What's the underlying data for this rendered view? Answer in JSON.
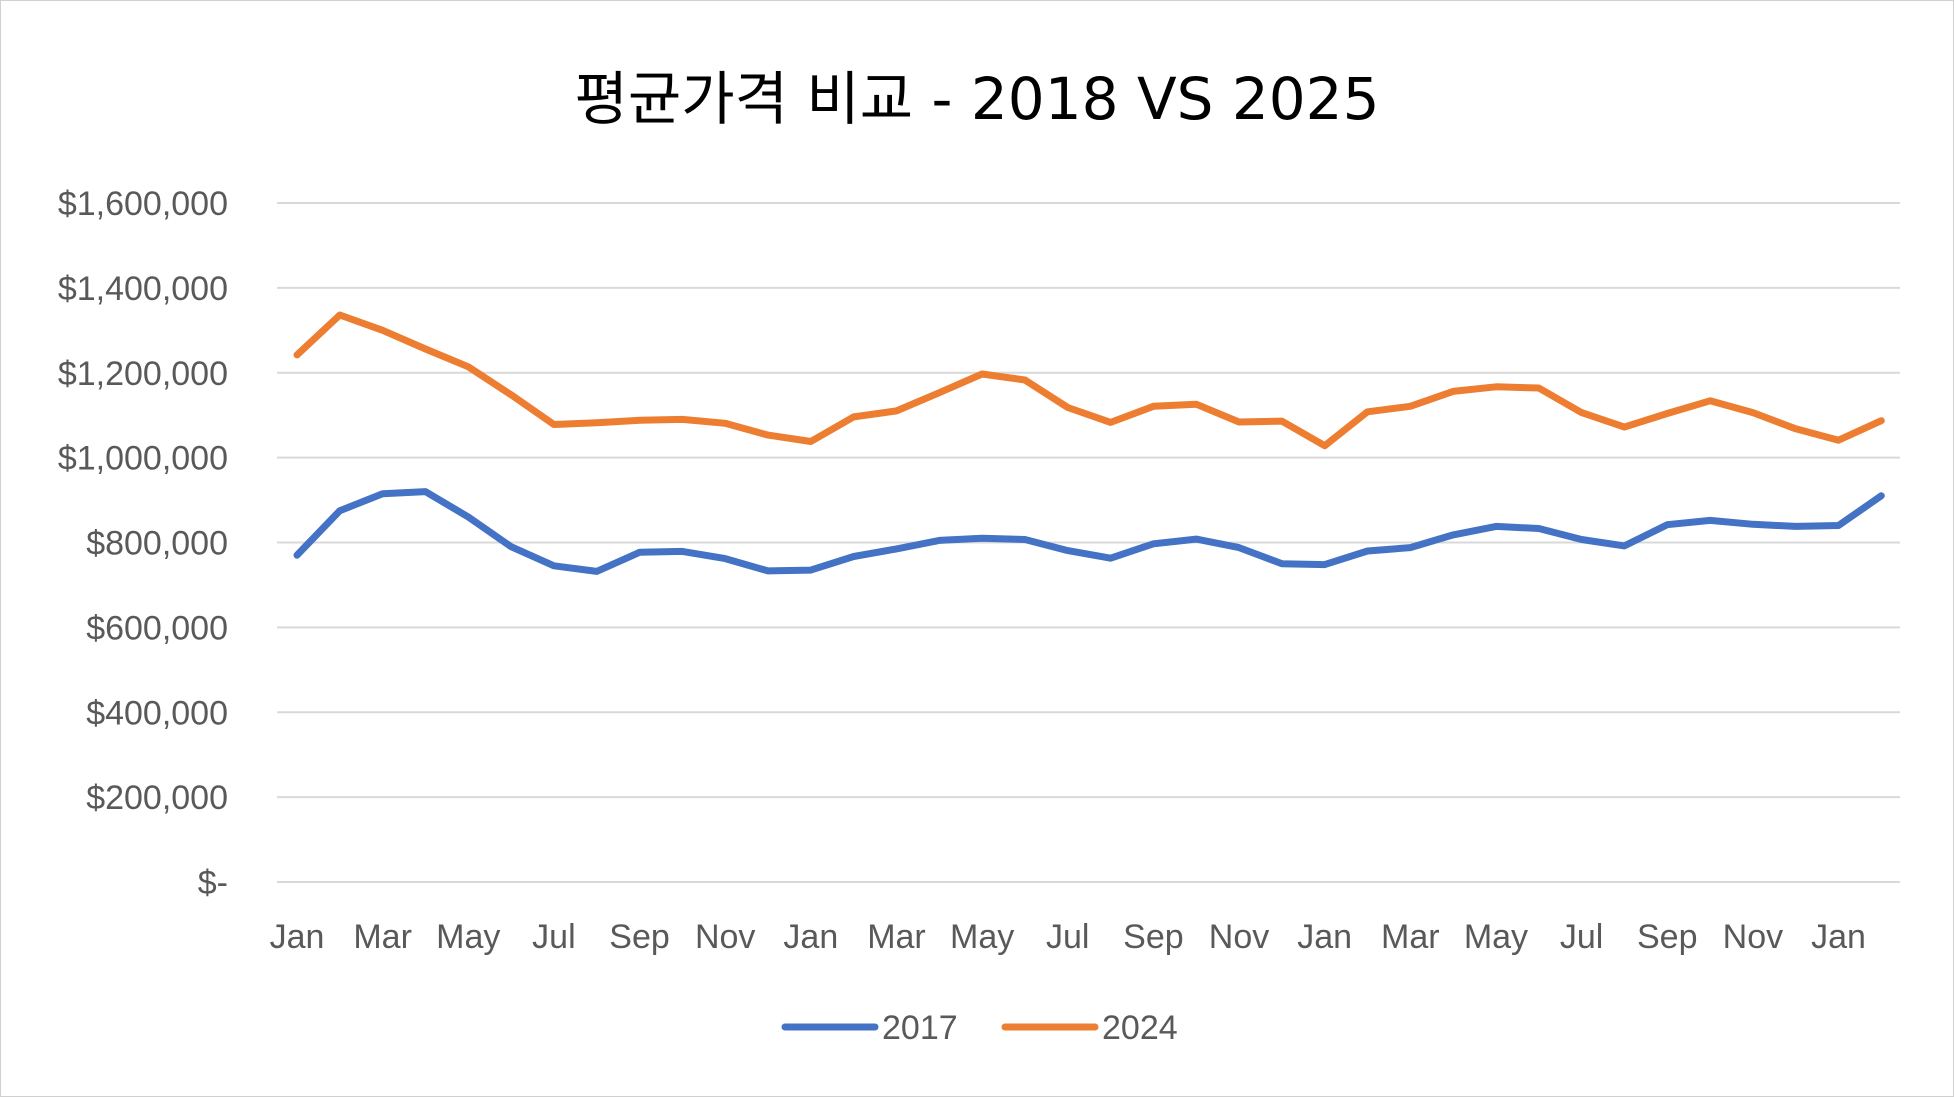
{
  "chart_data": {
    "type": "line",
    "title": "평균가격 비교 - 2018 VS 2025",
    "xlabel": "",
    "ylabel": "",
    "ylim": [
      0,
      1600000
    ],
    "yticks": [
      {
        "value": 0,
        "label": "$-"
      },
      {
        "value": 200000,
        "label": "$200,000"
      },
      {
        "value": 400000,
        "label": "$400,000"
      },
      {
        "value": 600000,
        "label": "$600,000"
      },
      {
        "value": 800000,
        "label": "$800,000"
      },
      {
        "value": 1000000,
        "label": "$1,000,000"
      },
      {
        "value": 1200000,
        "label": "$1,200,000"
      },
      {
        "value": 1400000,
        "label": "$1,400,000"
      },
      {
        "value": 1600000,
        "label": "$1,600,000"
      }
    ],
    "categories": [
      "Jan",
      "Feb",
      "Mar",
      "Apr",
      "May",
      "Jun",
      "Jul",
      "Aug",
      "Sep",
      "Oct",
      "Nov",
      "Dec",
      "Jan",
      "Feb",
      "Mar",
      "Apr",
      "May",
      "Jun",
      "Jul",
      "Aug",
      "Sep",
      "Oct",
      "Nov",
      "Dec",
      "Jan",
      "Feb",
      "Mar",
      "Apr",
      "May",
      "Jun",
      "Jul",
      "Aug",
      "Sep",
      "Oct",
      "Nov",
      "Dec",
      "Jan",
      "Feb"
    ],
    "tick_labels": [
      "Jan",
      "Mar",
      "May",
      "Jul",
      "Sep",
      "Nov",
      "Jan",
      "Mar",
      "May",
      "Jul",
      "Sep",
      "Nov",
      "Jan",
      "Mar",
      "May",
      "Jul",
      "Sep",
      "Nov",
      "Jan"
    ],
    "grid": true,
    "legend_position": "bottom",
    "series": [
      {
        "name": "2017",
        "color": "#4472C4",
        "values": [
          770000,
          875000,
          915000,
          920000,
          860000,
          790000,
          745000,
          732000,
          777000,
          779000,
          762000,
          733000,
          735000,
          767000,
          785000,
          805000,
          810000,
          807000,
          781000,
          763000,
          797000,
          808000,
          788000,
          750000,
          748000,
          780000,
          788000,
          818000,
          838000,
          833000,
          807000,
          792000,
          842000,
          852000,
          843000,
          838000,
          840000,
          910000
        ]
      },
      {
        "name": "2024",
        "color": "#ED7D31",
        "values": [
          1242000,
          1336000,
          1300000,
          1256000,
          1214000,
          1148000,
          1078000,
          1082000,
          1088000,
          1090000,
          1081000,
          1053000,
          1038000,
          1096000,
          1110000,
          1153000,
          1197000,
          1183000,
          1118000,
          1083000,
          1121000,
          1126000,
          1084000,
          1086000,
          1028000,
          1108000,
          1121000,
          1156000,
          1167000,
          1164000,
          1106000,
          1072000,
          1104000,
          1134000,
          1106000,
          1068000,
          1041000,
          1087000
        ]
      }
    ]
  }
}
